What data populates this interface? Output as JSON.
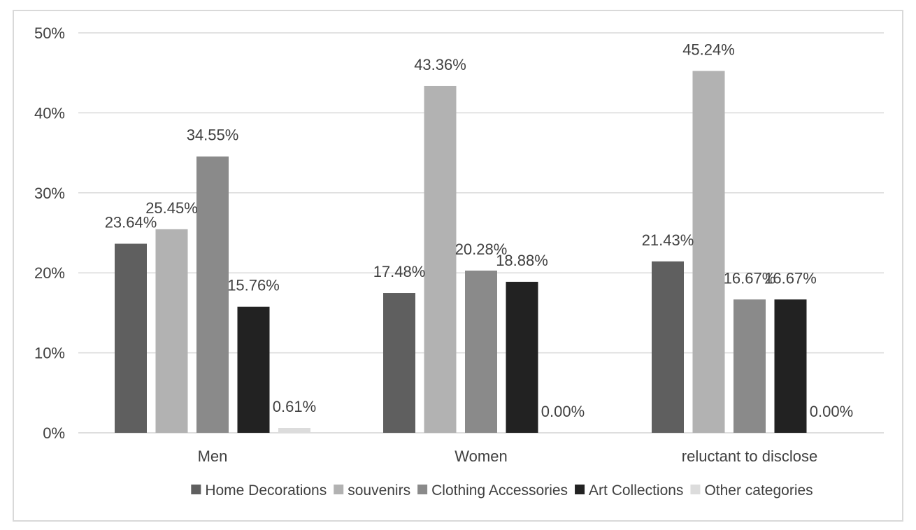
{
  "chart_data": {
    "type": "bar",
    "title": "",
    "xlabel": "",
    "ylabel": "",
    "ylim": [
      0,
      50
    ],
    "yticks": [
      "0%",
      "10%",
      "20%",
      "30%",
      "40%",
      "50%"
    ],
    "y_unit": "%",
    "grid": true,
    "legend_position": "bottom",
    "categories": [
      "Men",
      "Women",
      "reluctant to disclose"
    ],
    "series": [
      {
        "name": "Home Decorations",
        "color": "#5f5f5f",
        "values": [
          23.64,
          17.48,
          21.43
        ],
        "labels": [
          "23.64%",
          "17.48%",
          "21.43%"
        ]
      },
      {
        "name": "souvenirs",
        "color": "#b2b2b2",
        "values": [
          25.45,
          43.36,
          45.24
        ],
        "labels": [
          "25.45%",
          "43.36%",
          "45.24%"
        ]
      },
      {
        "name": "Clothing Accessories",
        "color": "#8a8a8a",
        "values": [
          34.55,
          20.28,
          16.67
        ],
        "labels": [
          "34.55%",
          "20.28%",
          "16.67%"
        ]
      },
      {
        "name": "Art Collections",
        "color": "#222222",
        "values": [
          15.76,
          18.88,
          16.67
        ],
        "labels": [
          "15.76%",
          "18.88%",
          "16.67%"
        ]
      },
      {
        "name": "Other categories",
        "color": "#dcdcdc",
        "values": [
          0.61,
          0.0,
          0.0
        ],
        "labels": [
          "0.61%",
          "0.00%",
          "0.00%"
        ]
      }
    ]
  }
}
